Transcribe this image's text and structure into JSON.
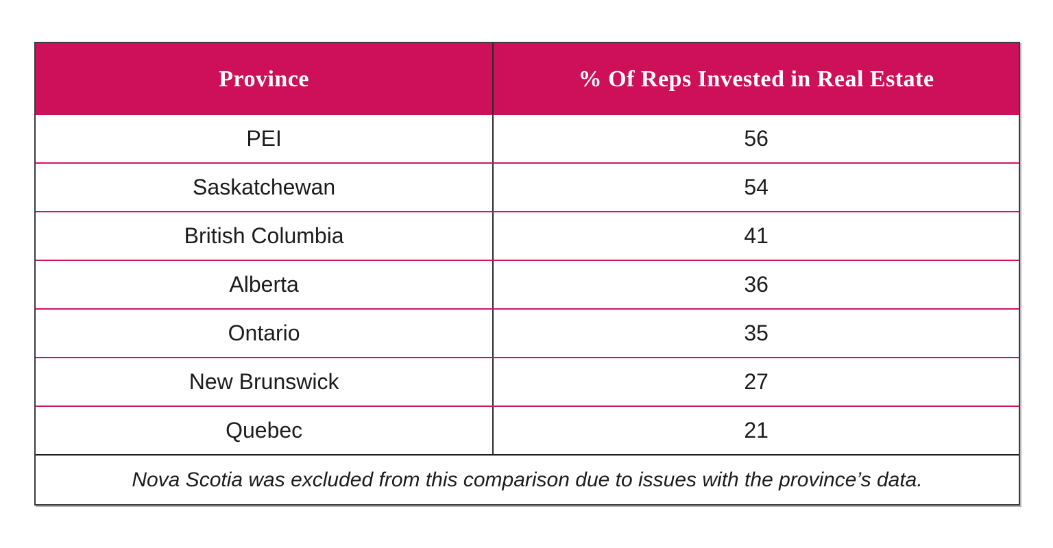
{
  "page": {
    "background": "#ffffff"
  },
  "colors": {
    "accent": "#CE0F59",
    "row_divider": "#D01261",
    "column_divider": "#2A2A2A",
    "outer_border": "#3C3C3C",
    "header_text": "#FFFFFF",
    "body_text": "#1C1C1E"
  },
  "table": {
    "columns": [
      "Province",
      "% Of Reps Invested in Real Estate"
    ],
    "rows": [
      {
        "province": "PEI",
        "value": "56"
      },
      {
        "province": "Saskatchewan",
        "value": "54"
      },
      {
        "province": "British Columbia",
        "value": "41"
      },
      {
        "province": "Alberta",
        "value": "36"
      },
      {
        "province": "Ontario",
        "value": "35"
      },
      {
        "province": "New Brunswick",
        "value": "27"
      },
      {
        "province": "Quebec",
        "value": "21"
      }
    ],
    "footnote": "Nova Scotia was excluded from this comparison due to issues with the province’s data."
  },
  "chart_data": {
    "type": "table",
    "columns": [
      "Province",
      "% Of Reps Invested in Real Estate"
    ],
    "categories": [
      "PEI",
      "Saskatchewan",
      "British Columbia",
      "Alberta",
      "Ontario",
      "New Brunswick",
      "Quebec"
    ],
    "values": [
      56,
      54,
      41,
      36,
      35,
      27,
      21
    ],
    "footnote": "Nova Scotia was excluded from this comparison due to issues with the province’s data.",
    "legend_position": "none",
    "grid": "table-borders"
  }
}
